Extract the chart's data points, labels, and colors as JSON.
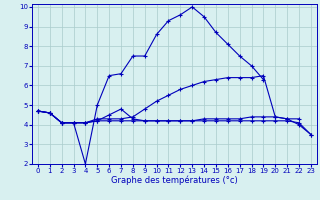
{
  "xlabel": "Graphe des températures (°c)",
  "hours": [
    0,
    1,
    2,
    3,
    4,
    5,
    6,
    7,
    8,
    9,
    10,
    11,
    12,
    13,
    14,
    15,
    16,
    17,
    18,
    19,
    20,
    21,
    22,
    23
  ],
  "line1_x": [
    0,
    1,
    2,
    3,
    4,
    5,
    6,
    7,
    8,
    9,
    10,
    11,
    12,
    13,
    14,
    15,
    16,
    17,
    18,
    19,
    20,
    21,
    22
  ],
  "line1_y": [
    4.7,
    4.6,
    4.1,
    4.1,
    4.1,
    4.2,
    4.5,
    4.8,
    4.3,
    4.2,
    4.2,
    4.2,
    4.2,
    4.2,
    4.3,
    4.3,
    4.3,
    4.3,
    4.4,
    4.4,
    4.4,
    4.3,
    4.3
  ],
  "line2_x": [
    0,
    1,
    2,
    3,
    4,
    5,
    6,
    7,
    8,
    9,
    10,
    11,
    12,
    13,
    14,
    15,
    16,
    17,
    18,
    19
  ],
  "line2_y": [
    4.7,
    4.6,
    4.1,
    4.1,
    2.0,
    5.0,
    6.5,
    6.6,
    7.5,
    7.5,
    8.6,
    9.3,
    9.6,
    10.0,
    9.5,
    8.7,
    8.1,
    7.5,
    7.0,
    6.3
  ],
  "line3_x": [
    0,
    1,
    2,
    3,
    4,
    5,
    6,
    7,
    8,
    9,
    10,
    11,
    12,
    13,
    14,
    15,
    16,
    17,
    18,
    19,
    20,
    21,
    22,
    23
  ],
  "line3_y": [
    4.7,
    4.6,
    4.1,
    4.1,
    4.1,
    4.3,
    4.3,
    4.3,
    4.4,
    4.8,
    5.2,
    5.5,
    5.8,
    6.0,
    6.2,
    6.3,
    6.4,
    6.4,
    6.4,
    6.5,
    4.4,
    4.3,
    4.0,
    3.5
  ],
  "line4_x": [
    0,
    1,
    2,
    3,
    4,
    5,
    6,
    7,
    8,
    9,
    10,
    11,
    12,
    13,
    14,
    15,
    16,
    17,
    18,
    19,
    20,
    21,
    22,
    23
  ],
  "line4_y": [
    4.7,
    4.6,
    4.1,
    4.1,
    4.1,
    4.2,
    4.2,
    4.2,
    4.2,
    4.2,
    4.2,
    4.2,
    4.2,
    4.2,
    4.2,
    4.2,
    4.2,
    4.2,
    4.2,
    4.2,
    4.2,
    4.2,
    4.1,
    3.5
  ],
  "line_color": "#0000bb",
  "bg_color": "#d8f0f0",
  "grid_color": "#aacccc",
  "ylim": [
    2,
    10
  ],
  "xlim": [
    -0.5,
    23.5
  ],
  "yticks": [
    2,
    3,
    4,
    5,
    6,
    7,
    8,
    9,
    10
  ],
  "xticks": [
    0,
    1,
    2,
    3,
    4,
    5,
    6,
    7,
    8,
    9,
    10,
    11,
    12,
    13,
    14,
    15,
    16,
    17,
    18,
    19,
    20,
    21,
    22,
    23
  ]
}
